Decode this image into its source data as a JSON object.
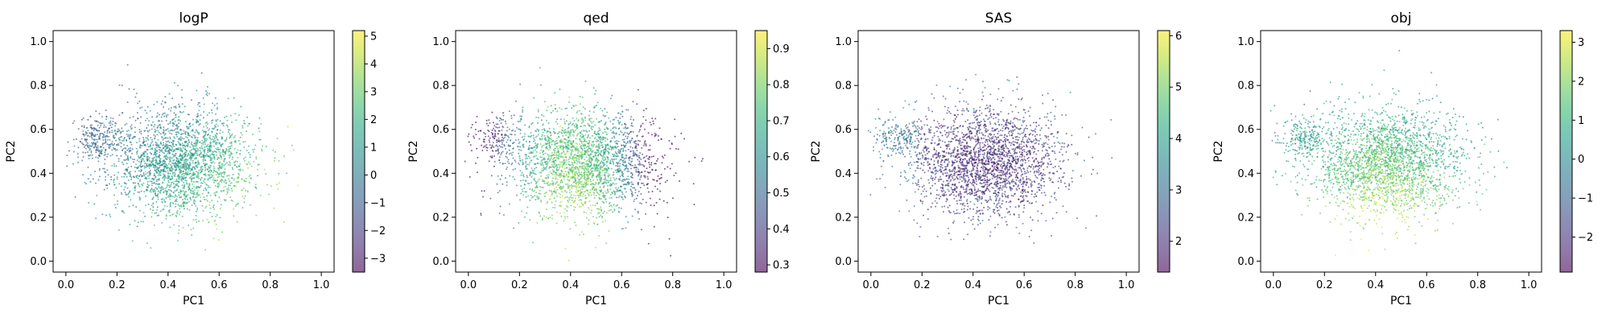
{
  "chart_data": [
    {
      "type": "scatter",
      "title": "logP",
      "xlabel": "PC1",
      "ylabel": "PC2",
      "xlim": [
        -0.05,
        1.05
      ],
      "ylim": [
        -0.05,
        1.05
      ],
      "xticks": [
        0.0,
        0.2,
        0.4,
        0.6,
        0.8,
        1.0
      ],
      "yticks": [
        0.0,
        0.2,
        0.4,
        0.6,
        0.8,
        1.0
      ],
      "grid": false,
      "point_count_shown": "dense cloud (~tens of thousands of points)",
      "colorbar": {
        "min": -3.5,
        "max": 5.2,
        "ticks": [
          -3,
          -2,
          -1,
          0,
          1,
          2,
          3,
          4,
          5
        ]
      },
      "colormap": "viridis",
      "cluster": {
        "center": [
          0.45,
          0.45
        ],
        "spread": [
          0.15,
          0.12
        ],
        "side_blob": [
          0.12,
          0.56
        ]
      },
      "value_pattern": "higher values toward right and lower half; lower values toward upper-left"
    },
    {
      "type": "scatter",
      "title": "qed",
      "xlabel": "PC1",
      "ylabel": "PC2",
      "xlim": [
        -0.05,
        1.05
      ],
      "ylim": [
        -0.05,
        1.05
      ],
      "xticks": [
        0.0,
        0.2,
        0.4,
        0.6,
        0.8,
        1.0
      ],
      "yticks": [
        0.0,
        0.2,
        0.4,
        0.6,
        0.8,
        1.0
      ],
      "grid": false,
      "colorbar": {
        "min": 0.28,
        "max": 0.95,
        "ticks": [
          0.3,
          0.4,
          0.5,
          0.6,
          0.7,
          0.8,
          0.9
        ]
      },
      "colormap": "viridis",
      "cluster": {
        "center": [
          0.45,
          0.45
        ],
        "spread": [
          0.15,
          0.12
        ],
        "side_blob": [
          0.12,
          0.56
        ]
      },
      "value_pattern": "highest near center-left (x≈0.4), decreasing toward right edge"
    },
    {
      "type": "scatter",
      "title": "SAS",
      "xlabel": "PC1",
      "ylabel": "PC2",
      "xlim": [
        -0.05,
        1.05
      ],
      "ylim": [
        -0.05,
        1.05
      ],
      "xticks": [
        0.0,
        0.2,
        0.4,
        0.6,
        0.8,
        1.0
      ],
      "yticks": [
        0.0,
        0.2,
        0.4,
        0.6,
        0.8,
        1.0
      ],
      "grid": false,
      "colorbar": {
        "min": 1.4,
        "max": 6.1,
        "ticks": [
          2,
          3,
          4,
          5,
          6
        ]
      },
      "colormap": "viridis",
      "cluster": {
        "center": [
          0.45,
          0.45
        ],
        "spread": [
          0.15,
          0.12
        ],
        "side_blob": [
          0.12,
          0.56
        ]
      },
      "value_pattern": "mostly low (dark) values; higher values at the periphery and top"
    },
    {
      "type": "scatter",
      "title": "obj",
      "xlabel": "PC1",
      "ylabel": "PC2",
      "xlim": [
        -0.05,
        1.05
      ],
      "ylim": [
        -0.05,
        1.05
      ],
      "xticks": [
        0.0,
        0.2,
        0.4,
        0.6,
        0.8,
        1.0
      ],
      "yticks": [
        0.0,
        0.2,
        0.4,
        0.6,
        0.8,
        1.0
      ],
      "grid": false,
      "colorbar": {
        "min": -2.9,
        "max": 3.3,
        "ticks": [
          -2,
          -1,
          0,
          1,
          2,
          3
        ]
      },
      "colormap": "viridis",
      "cluster": {
        "center": [
          0.45,
          0.45
        ],
        "spread": [
          0.15,
          0.12
        ],
        "side_blob": [
          0.12,
          0.56
        ]
      },
      "value_pattern": "highest near center-bottom (x≈0.4, y≈0.3), lower toward upper-right"
    }
  ]
}
